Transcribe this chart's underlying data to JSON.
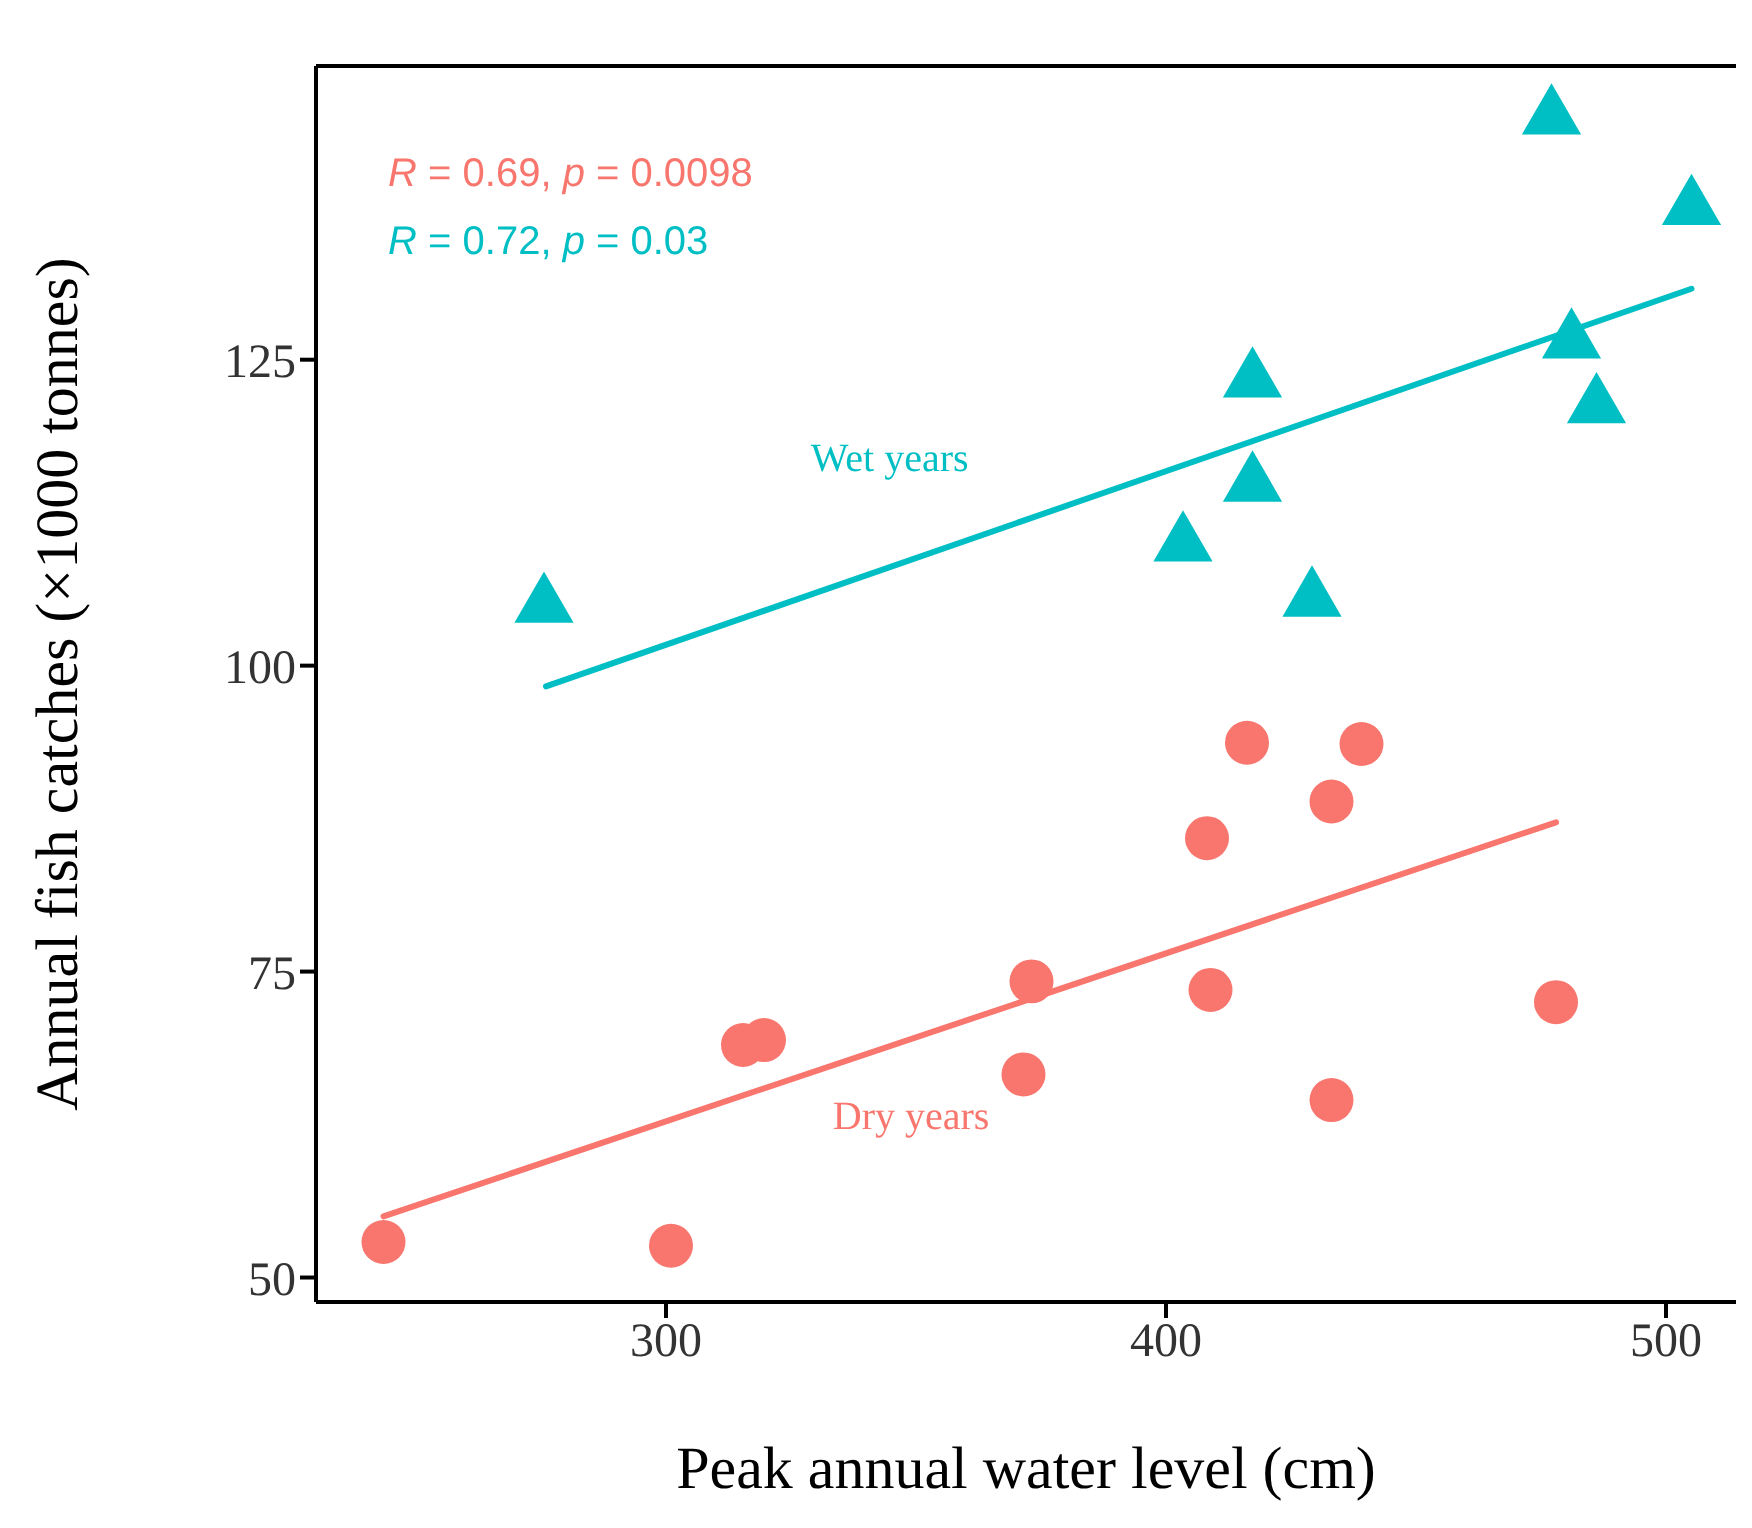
{
  "chart_data": {
    "type": "scatter",
    "xlabel": "Peak annual water level (cm)",
    "ylabel": "Annual fish catches (×1000 tonnes)",
    "xlim": [
      230,
      514
    ],
    "ylim": [
      48,
      149
    ],
    "xticks": [
      300,
      400,
      500
    ],
    "yticks": [
      50,
      75,
      100,
      125
    ],
    "grid": false,
    "legend": false,
    "annotations": [
      "R = 0.69, p = 0.0098",
      "R = 0.72, p = 0.03"
    ],
    "series": [
      {
        "name": "Dry years",
        "marker": "circle",
        "color": "#f8766d",
        "x": [
          243.5,
          301,
          315.4,
          319.6,
          371.5,
          373.1,
          408.2,
          408.9,
          416.2,
          433.1,
          433.1,
          439.1,
          478
        ],
        "values": [
          52.9,
          52.6,
          69.0,
          69.4,
          66.6,
          74.2,
          85.9,
          73.5,
          93.7,
          88.9,
          64.5,
          93.6,
          72.5
        ]
      },
      {
        "name": "Wet years",
        "marker": "triangle",
        "color": "#00bfc4",
        "x": [
          275.6,
          403.4,
          417.3,
          417.3,
          429.2,
          477.1,
          481.1,
          486.1,
          505.1
        ],
        "values": [
          104.9,
          109.9,
          123.3,
          114.8,
          105.4,
          144.8,
          126.5,
          121.2,
          137.4
        ]
      },
      {
        "type": "line",
        "marker": "none",
        "color": "#f8766d",
        "x": [
          243.5,
          478
        ],
        "values": [
          55.0,
          87.2
        ]
      },
      {
        "type": "line",
        "marker": "none",
        "color": "#00bfc4",
        "x": [
          276,
          505.1
        ],
        "values": [
          98.3,
          130.8
        ]
      }
    ]
  }
}
